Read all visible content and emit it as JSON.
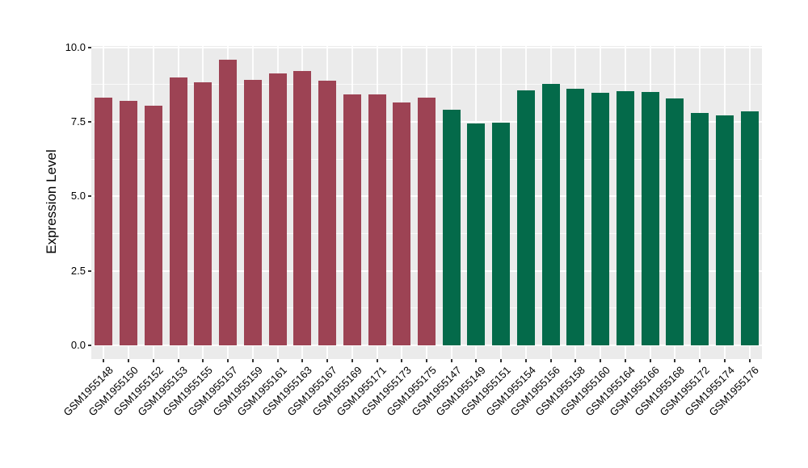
{
  "figure": {
    "background": "#FFFFFF"
  },
  "chart_data": {
    "type": "bar",
    "title": "",
    "xlabel": "",
    "ylabel": "Expression Level",
    "ylim": [
      0,
      10
    ],
    "yticks": [
      0,
      2.5,
      5,
      7.5,
      10
    ],
    "ytick_labels": [
      "0.0",
      "2.5",
      "5.0",
      "7.5",
      "10.0"
    ],
    "minor_yticks": [
      1.25,
      3.75,
      6.25,
      8.75
    ],
    "grid": "on",
    "legend_position": "none",
    "panel_background": "#EBEBEB",
    "grid_color": "#FFFFFF",
    "axis_text_color": "#000000",
    "tick_mark_color": "#333333",
    "groups": [
      {
        "name": "maroon-group",
        "color": "#9D4354"
      },
      {
        "name": "green-group",
        "color": "#046A4A"
      }
    ],
    "bars": [
      {
        "label": "GSM1955148",
        "value": 8.31,
        "group": 0
      },
      {
        "label": "GSM1955150",
        "value": 8.19,
        "group": 0
      },
      {
        "label": "GSM1955152",
        "value": 8.04,
        "group": 0
      },
      {
        "label": "GSM1955153",
        "value": 8.99,
        "group": 0
      },
      {
        "label": "GSM1955155",
        "value": 8.82,
        "group": 0
      },
      {
        "label": "GSM1955157",
        "value": 9.57,
        "group": 0
      },
      {
        "label": "GSM1955159",
        "value": 8.91,
        "group": 0
      },
      {
        "label": "GSM1955161",
        "value": 9.11,
        "group": 0
      },
      {
        "label": "GSM1955163",
        "value": 9.21,
        "group": 0
      },
      {
        "label": "GSM1955167",
        "value": 8.87,
        "group": 0
      },
      {
        "label": "GSM1955169",
        "value": 8.42,
        "group": 0
      },
      {
        "label": "GSM1955171",
        "value": 8.43,
        "group": 0
      },
      {
        "label": "GSM1955173",
        "value": 8.14,
        "group": 0
      },
      {
        "label": "GSM1955175",
        "value": 8.3,
        "group": 0
      },
      {
        "label": "GSM1955147",
        "value": 7.9,
        "group": 1
      },
      {
        "label": "GSM1955149",
        "value": 7.43,
        "group": 1
      },
      {
        "label": "GSM1955151",
        "value": 7.48,
        "group": 1
      },
      {
        "label": "GSM1955154",
        "value": 8.54,
        "group": 1
      },
      {
        "label": "GSM1955156",
        "value": 8.76,
        "group": 1
      },
      {
        "label": "GSM1955158",
        "value": 8.6,
        "group": 1
      },
      {
        "label": "GSM1955160",
        "value": 8.46,
        "group": 1
      },
      {
        "label": "GSM1955164",
        "value": 8.53,
        "group": 1
      },
      {
        "label": "GSM1955166",
        "value": 8.49,
        "group": 1
      },
      {
        "label": "GSM1955168",
        "value": 8.28,
        "group": 1
      },
      {
        "label": "GSM1955172",
        "value": 7.8,
        "group": 1
      },
      {
        "label": "GSM1955174",
        "value": 7.71,
        "group": 1
      },
      {
        "label": "GSM1955176",
        "value": 7.86,
        "group": 1
      }
    ]
  }
}
